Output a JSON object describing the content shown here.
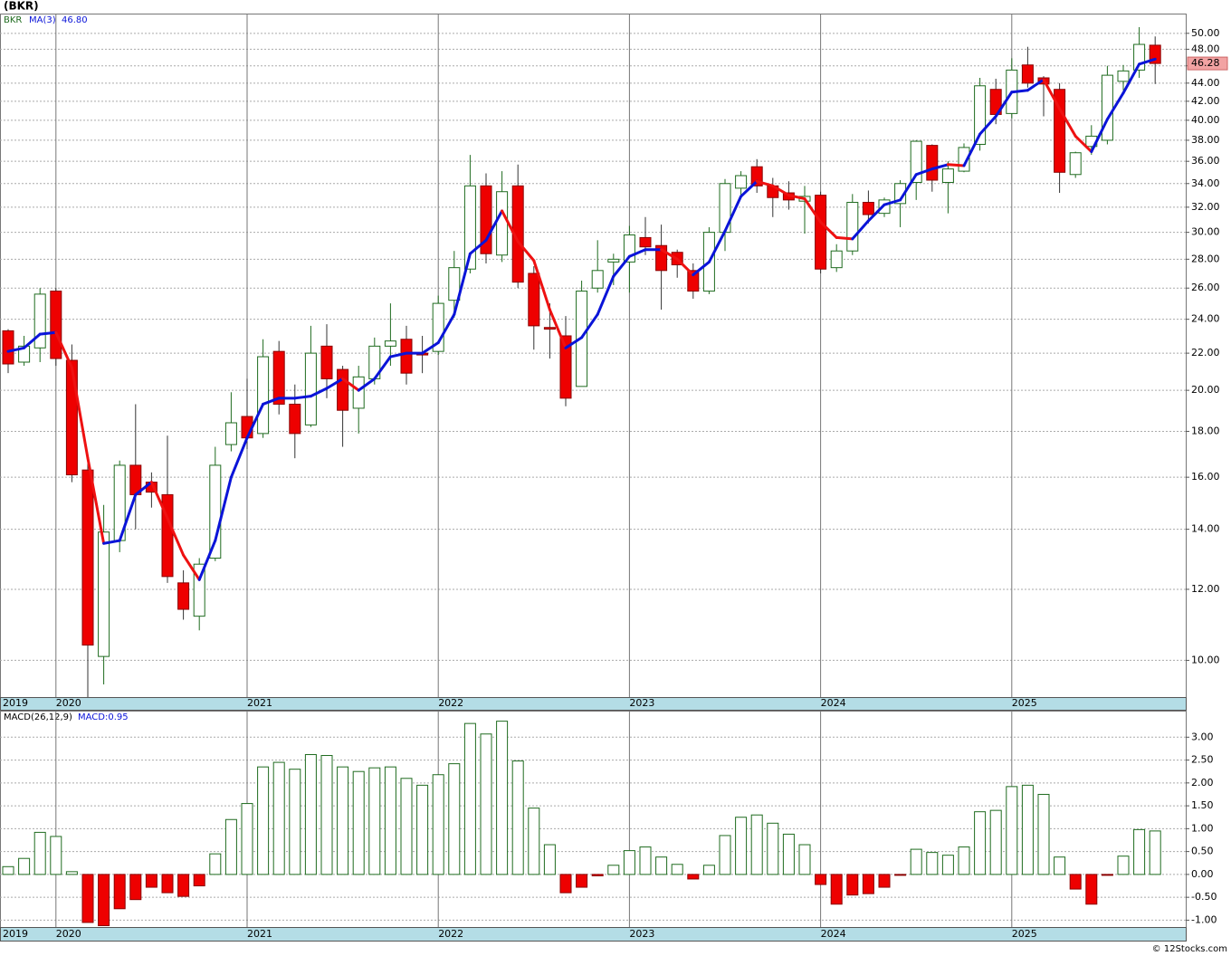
{
  "credit": "© 12Stocks.com",
  "chart_data": [
    {
      "type": "candlestick",
      "title": "(BKR)",
      "symbol": "BKR",
      "categories": [
        "2019",
        null,
        null,
        "2020",
        null,
        null,
        null,
        null,
        null,
        null,
        null,
        null,
        null,
        null,
        null,
        "2021",
        null,
        null,
        null,
        null,
        null,
        null,
        null,
        null,
        null,
        null,
        null,
        "2022",
        null,
        null,
        null,
        null,
        null,
        null,
        null,
        null,
        null,
        null,
        null,
        "2023",
        null,
        null,
        null,
        null,
        null,
        null,
        null,
        null,
        null,
        null,
        null,
        "2024",
        null,
        null,
        null,
        null,
        null,
        null,
        null,
        null,
        null,
        null,
        null,
        "2025",
        null,
        null,
        null,
        null,
        null,
        null,
        null,
        null,
        null
      ],
      "open": [
        23.3,
        21.5,
        22.3,
        25.8,
        21.6,
        16.3,
        10.1,
        13.6,
        16.5,
        15.8,
        15.3,
        12.2,
        11.2,
        13.0,
        17.4,
        18.7,
        17.9,
        22.1,
        19.3,
        18.3,
        22.4,
        21.1,
        19.1,
        20.6,
        22.4,
        22.8,
        22.0,
        22.1,
        25.2,
        27.3,
        33.8,
        28.3,
        33.8,
        27.0,
        23.5,
        23.0,
        20.2,
        26.0,
        27.8,
        27.8,
        29.6,
        29.0,
        28.5,
        27.2,
        25.8,
        30.0,
        33.6,
        35.5,
        33.8,
        33.2,
        32.5,
        33.0,
        27.4,
        28.6,
        32.4,
        31.5,
        32.3,
        34.1,
        37.5,
        34.1,
        35.1,
        37.6,
        43.3,
        40.7,
        46.1,
        44.6,
        43.3,
        34.8,
        37.4,
        38.0,
        44.2,
        45.5,
        48.5
      ],
      "high": [
        23.4,
        23.0,
        26.0,
        26.0,
        22.5,
        16.9,
        14.9,
        16.7,
        19.3,
        16.2,
        17.8,
        12.6,
        13.0,
        17.3,
        19.9,
        20.6,
        22.8,
        22.7,
        20.3,
        23.6,
        23.7,
        21.3,
        21.3,
        22.9,
        25.0,
        23.6,
        23.0,
        25.5,
        28.6,
        36.6,
        34.9,
        35.1,
        35.7,
        27.5,
        25.0,
        24.2,
        26.5,
        29.4,
        28.4,
        30.5,
        31.2,
        30.6,
        28.7,
        27.7,
        30.4,
        34.4,
        35.1,
        36.2,
        34.5,
        34.2,
        33.8,
        33.3,
        29.1,
        33.1,
        33.4,
        32.8,
        34.3,
        38.0,
        37.6,
        36.0,
        37.7,
        44.6,
        44.5,
        46.9,
        48.3,
        44.8,
        44.0,
        36.9,
        39.5,
        46.0,
        46.1,
        50.8,
        49.6
      ],
      "low": [
        20.9,
        21.3,
        21.5,
        21.3,
        15.8,
        9.1,
        9.4,
        13.2,
        14.0,
        14.8,
        12.2,
        11.1,
        10.8,
        12.9,
        17.1,
        17.2,
        17.7,
        18.8,
        16.8,
        18.2,
        19.6,
        17.3,
        17.9,
        20.3,
        21.3,
        20.3,
        20.9,
        21.9,
        24.1,
        27.0,
        27.7,
        27.8,
        26.0,
        22.2,
        21.7,
        19.2,
        20.2,
        25.7,
        26.2,
        25.7,
        28.3,
        24.6,
        26.7,
        25.3,
        25.6,
        28.6,
        33.0,
        33.2,
        31.2,
        31.8,
        29.9,
        27.0,
        27.1,
        28.3,
        30.7,
        31.2,
        30.4,
        32.6,
        33.3,
        31.5,
        35.0,
        37.0,
        39.6,
        40.2,
        43.5,
        40.4,
        33.2,
        34.5,
        36.6,
        37.6,
        43.2,
        44.6,
        43.9
      ],
      "close": [
        21.4,
        22.4,
        25.6,
        21.7,
        16.1,
        10.4,
        13.9,
        16.5,
        15.3,
        15.4,
        12.4,
        11.4,
        12.8,
        16.5,
        18.4,
        17.7,
        21.8,
        19.3,
        17.9,
        22.0,
        20.6,
        19.0,
        20.7,
        22.4,
        22.7,
        20.9,
        21.9,
        25.0,
        27.4,
        33.8,
        28.4,
        33.3,
        26.4,
        23.6,
        23.4,
        19.6,
        25.8,
        27.2,
        28.0,
        29.8,
        28.9,
        27.2,
        27.6,
        25.8,
        30.0,
        34.0,
        34.7,
        33.8,
        32.8,
        32.6,
        32.9,
        27.3,
        28.6,
        32.4,
        31.4,
        32.6,
        34.0,
        37.9,
        34.3,
        35.3,
        37.3,
        43.7,
        40.6,
        45.5,
        44.0,
        43.9,
        35.0,
        36.8,
        38.4,
        44.9,
        45.4,
        48.6,
        46.28
      ],
      "last_label": "46.28",
      "up_color": "#1f6b1f",
      "down_color": "#ee0000",
      "ma": {
        "name": "MA(3)",
        "last_label": "46.80",
        "up_color": "#0a14d8",
        "down_color": "#ee1111",
        "values": [
          22.1,
          22.3,
          23.1,
          23.2,
          21.2,
          16.8,
          13.5,
          13.6,
          15.3,
          15.8,
          14.4,
          13.1,
          12.3,
          13.6,
          16.0,
          17.7,
          19.3,
          19.6,
          19.6,
          19.7,
          20.1,
          20.6,
          20.0,
          20.6,
          21.8,
          22.0,
          22.0,
          22.6,
          24.3,
          28.4,
          29.4,
          31.7,
          29.3,
          27.9,
          24.6,
          22.3,
          22.9,
          24.3,
          26.8,
          28.2,
          28.7,
          28.7,
          28.0,
          26.9,
          27.8,
          30.1,
          32.9,
          34.2,
          33.8,
          33.0,
          32.7,
          30.8,
          29.6,
          29.5,
          30.9,
          32.2,
          32.6,
          34.8,
          35.3,
          35.7,
          35.6,
          38.6,
          40.4,
          43.0,
          43.2,
          44.4,
          41.2,
          38.4,
          36.9,
          40.1,
          42.9,
          46.2,
          46.8
        ]
      },
      "log_scale": true,
      "grid": true,
      "ylim": [
        9.1,
        52.6
      ],
      "yticks": [
        {
          "value": 10,
          "label": "10.00"
        },
        {
          "value": 12,
          "label": "12.00"
        },
        {
          "value": 14,
          "label": "14.00"
        },
        {
          "value": 16,
          "label": "16.00"
        },
        {
          "value": 18,
          "label": "18.00"
        },
        {
          "value": 20,
          "label": "20.00"
        },
        {
          "value": 22,
          "label": "22.00"
        },
        {
          "value": 24,
          "label": "24.00"
        },
        {
          "value": 26,
          "label": "26.00"
        },
        {
          "value": 28,
          "label": "28.00"
        },
        {
          "value": 30,
          "label": "30.00"
        },
        {
          "value": 32,
          "label": "32.00"
        },
        {
          "value": 34,
          "label": "34.00"
        },
        {
          "value": 36,
          "label": "36.00"
        },
        {
          "value": 38,
          "label": "38.00"
        },
        {
          "value": 40,
          "label": "40.00"
        },
        {
          "value": 42,
          "label": "42.00"
        },
        {
          "value": 44,
          "label": "44.00"
        },
        {
          "value": 46,
          "label": "46.00"
        },
        {
          "value": 48,
          "label": "48.00"
        },
        {
          "value": 50,
          "label": "50.00"
        }
      ]
    },
    {
      "type": "bar",
      "title": "MACD(26,12,9)",
      "label": "MACD:0.95",
      "categories": [
        "2019",
        null,
        null,
        "2020",
        null,
        null,
        null,
        null,
        null,
        null,
        null,
        null,
        null,
        null,
        null,
        "2021",
        null,
        null,
        null,
        null,
        null,
        null,
        null,
        null,
        null,
        null,
        null,
        "2022",
        null,
        null,
        null,
        null,
        null,
        null,
        null,
        null,
        null,
        null,
        null,
        "2023",
        null,
        null,
        null,
        null,
        null,
        null,
        null,
        null,
        null,
        null,
        null,
        "2024",
        null,
        null,
        null,
        null,
        null,
        null,
        null,
        null,
        null,
        null,
        null,
        "2025",
        null,
        null,
        null,
        null,
        null,
        null,
        null,
        null,
        null
      ],
      "values": [
        0.17,
        0.35,
        0.92,
        0.83,
        0.06,
        -1.05,
        -1.12,
        -0.75,
        -0.55,
        -0.28,
        -0.4,
        -0.48,
        -0.25,
        0.45,
        1.2,
        1.55,
        2.35,
        2.45,
        2.3,
        2.62,
        2.6,
        2.35,
        2.25,
        2.33,
        2.35,
        2.1,
        1.95,
        2.18,
        2.42,
        3.3,
        3.07,
        3.35,
        2.48,
        1.45,
        0.65,
        -0.4,
        -0.28,
        -0.03,
        0.2,
        0.52,
        0.6,
        0.38,
        0.22,
        -0.1,
        0.2,
        0.85,
        1.25,
        1.3,
        1.12,
        0.88,
        0.65,
        -0.22,
        -0.65,
        -0.45,
        -0.42,
        -0.28,
        -0.02,
        0.55,
        0.48,
        0.42,
        0.6,
        1.37,
        1.4,
        1.92,
        1.95,
        1.75,
        0.38,
        -0.32,
        -0.65,
        -0.02,
        0.4,
        0.98,
        0.95
      ],
      "up_color": "#1f6b1f",
      "down_color": "#ee0000",
      "grid": true,
      "ylim": [
        -1.15,
        3.58
      ],
      "yticks": [
        {
          "value": -1,
          "label": "-1.00"
        },
        {
          "value": -0.5,
          "label": "-0.50"
        },
        {
          "value": 0,
          "label": "0.00"
        },
        {
          "value": 0.5,
          "label": "0.50"
        },
        {
          "value": 1,
          "label": "1.00"
        },
        {
          "value": 1.5,
          "label": "1.50"
        },
        {
          "value": 2,
          "label": "2.00"
        },
        {
          "value": 2.5,
          "label": "2.50"
        },
        {
          "value": 3,
          "label": "3.00"
        }
      ]
    }
  ]
}
